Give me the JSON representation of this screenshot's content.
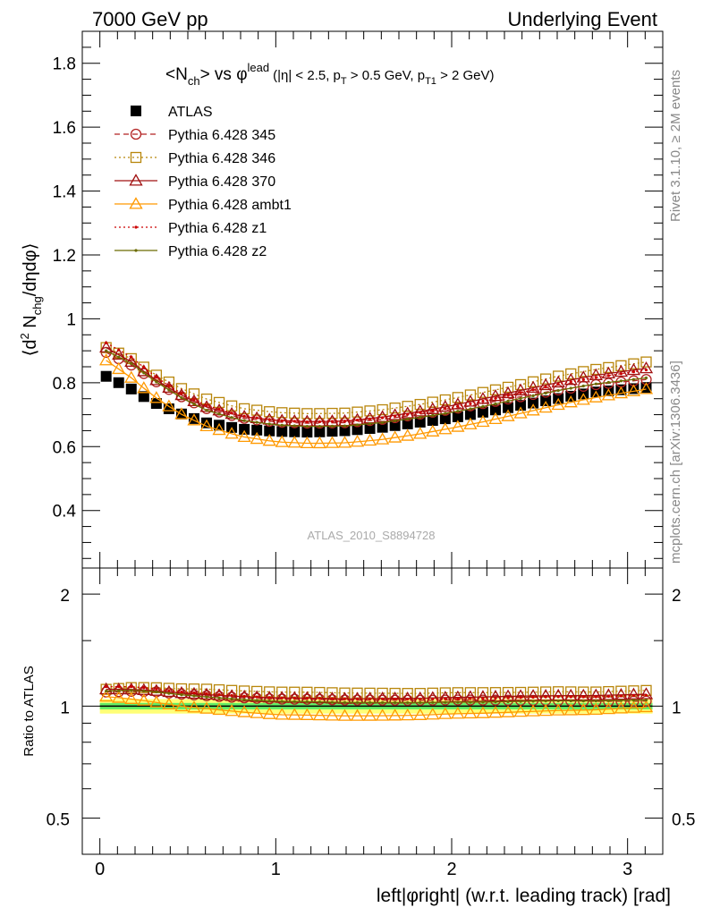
{
  "header": {
    "left": "7000 GeV pp",
    "right": "Underlying Event",
    "side_top": "Rivet 3.1.10, ≥ 2M events",
    "side_bottom": "mcplots.cern.ch [arXiv:1306.3436]"
  },
  "chart_data": {
    "type": "scatter",
    "title": {
      "main": "<N",
      "main_sub": "ch",
      "main_mid": "> vs φ",
      "main_sup": "lead",
      "cuts_a": "(|η| < 2.5, p",
      "cuts_a_sub": "T",
      "cuts_b": " > 0.5 GeV, p",
      "cuts_b_sub": "T1",
      "cuts_c": " > 2 GeV)"
    },
    "ylabel": {
      "a": "⟨d",
      "a_sup": "2",
      "b": " N",
      "b_sub": "chg",
      "c": "/dηdφ⟩"
    },
    "xlabel": "left|φright| (w.r.t. leading track) [rad]",
    "ratio_ylabel": "Ratio to ATLAS",
    "watermark": "ATLAS_2010_S8894728",
    "xlim": [
      -0.1,
      3.2
    ],
    "ylim": [
      0.22,
      1.9
    ],
    "ratio_ylim": [
      0.4,
      2.35
    ],
    "x_ticks": [
      "0",
      "1",
      "2",
      "3"
    ],
    "y_ticks": [
      "0.4",
      "0.6",
      "0.8",
      "1",
      "1.2",
      "1.4",
      "1.6",
      "1.8"
    ],
    "ratio_y_ticks": [
      "0.5",
      "1",
      "2"
    ],
    "n_points": 44,
    "x_start": 0.0357,
    "x_step": 0.0714,
    "series": [
      {
        "name": "ATLAS",
        "color": "#000000",
        "marker": "filled-square",
        "line": "none",
        "anchors": [
          [
            0.0357,
            0.82
          ],
          [
            0.18,
            0.78
          ],
          [
            0.3,
            0.74
          ],
          [
            0.45,
            0.705
          ],
          [
            0.6,
            0.675
          ],
          [
            0.8,
            0.655
          ],
          [
            1.0,
            0.648
          ],
          [
            1.2,
            0.645
          ],
          [
            1.4,
            0.65
          ],
          [
            1.6,
            0.66
          ],
          [
            1.8,
            0.675
          ],
          [
            2.0,
            0.69
          ],
          [
            2.2,
            0.71
          ],
          [
            2.4,
            0.73
          ],
          [
            2.6,
            0.75
          ],
          [
            2.8,
            0.77
          ],
          [
            3.1058,
            0.785
          ]
        ]
      },
      {
        "name": "Pythia 6.428 345",
        "color": "#b22222",
        "marker": "open-circle",
        "line": "dashed",
        "anchors": [
          [
            0.0357,
            0.895
          ],
          [
            0.18,
            0.855
          ],
          [
            0.3,
            0.81
          ],
          [
            0.45,
            0.76
          ],
          [
            0.6,
            0.72
          ],
          [
            0.8,
            0.69
          ],
          [
            1.0,
            0.677
          ],
          [
            1.2,
            0.673
          ],
          [
            1.4,
            0.675
          ],
          [
            1.6,
            0.685
          ],
          [
            1.8,
            0.7
          ],
          [
            2.0,
            0.717
          ],
          [
            2.2,
            0.737
          ],
          [
            2.4,
            0.757
          ],
          [
            2.6,
            0.777
          ],
          [
            2.8,
            0.793
          ],
          [
            3.1058,
            0.81
          ]
        ]
      },
      {
        "name": "Pythia 6.428 346",
        "color": "#b8860b",
        "marker": "open-square",
        "line": "dotted",
        "anchors": [
          [
            0.0357,
            0.91
          ],
          [
            0.18,
            0.875
          ],
          [
            0.3,
            0.83
          ],
          [
            0.45,
            0.785
          ],
          [
            0.6,
            0.75
          ],
          [
            0.8,
            0.72
          ],
          [
            1.0,
            0.707
          ],
          [
            1.2,
            0.703
          ],
          [
            1.4,
            0.705
          ],
          [
            1.6,
            0.715
          ],
          [
            1.8,
            0.73
          ],
          [
            2.0,
            0.75
          ],
          [
            2.2,
            0.772
          ],
          [
            2.4,
            0.795
          ],
          [
            2.6,
            0.82
          ],
          [
            2.8,
            0.84
          ],
          [
            3.1058,
            0.865
          ]
        ]
      },
      {
        "name": "Pythia 6.428 370",
        "color": "#a01010",
        "marker": "open-triangle",
        "line": "solid",
        "anchors": [
          [
            0.0357,
            0.91
          ],
          [
            0.18,
            0.865
          ],
          [
            0.3,
            0.815
          ],
          [
            0.45,
            0.765
          ],
          [
            0.6,
            0.725
          ],
          [
            0.8,
            0.695
          ],
          [
            1.0,
            0.682
          ],
          [
            1.2,
            0.678
          ],
          [
            1.4,
            0.68
          ],
          [
            1.6,
            0.692
          ],
          [
            1.8,
            0.708
          ],
          [
            2.0,
            0.728
          ],
          [
            2.2,
            0.752
          ],
          [
            2.4,
            0.777
          ],
          [
            2.6,
            0.8
          ],
          [
            2.8,
            0.822
          ],
          [
            3.1058,
            0.845
          ]
        ]
      },
      {
        "name": "Pythia 6.428 ambt1",
        "color": "#ff9900",
        "marker": "open-triangle",
        "line": "solid",
        "anchors": [
          [
            0.0357,
            0.87
          ],
          [
            0.18,
            0.815
          ],
          [
            0.3,
            0.76
          ],
          [
            0.45,
            0.705
          ],
          [
            0.6,
            0.665
          ],
          [
            0.8,
            0.632
          ],
          [
            1.0,
            0.615
          ],
          [
            1.2,
            0.61
          ],
          [
            1.4,
            0.612
          ],
          [
            1.6,
            0.622
          ],
          [
            1.8,
            0.638
          ],
          [
            2.0,
            0.658
          ],
          [
            2.2,
            0.68
          ],
          [
            2.4,
            0.705
          ],
          [
            2.6,
            0.73
          ],
          [
            2.8,
            0.752
          ],
          [
            3.1058,
            0.78
          ]
        ]
      },
      {
        "name": "Pythia 6.428 z1",
        "color": "#cc0000",
        "marker": "dot",
        "line": "dotted",
        "anchors": [
          [
            0.0357,
            0.925
          ],
          [
            0.18,
            0.88
          ],
          [
            0.3,
            0.825
          ],
          [
            0.45,
            0.77
          ],
          [
            0.6,
            0.73
          ],
          [
            0.8,
            0.697
          ],
          [
            1.0,
            0.682
          ],
          [
            1.2,
            0.677
          ],
          [
            1.4,
            0.68
          ],
          [
            1.6,
            0.69
          ],
          [
            1.8,
            0.705
          ],
          [
            2.0,
            0.722
          ],
          [
            2.2,
            0.745
          ],
          [
            2.4,
            0.77
          ],
          [
            2.6,
            0.795
          ],
          [
            2.8,
            0.815
          ],
          [
            3.1058,
            0.84
          ]
        ]
      },
      {
        "name": "Pythia 6.428 z2",
        "color": "#6b6b00",
        "marker": "dot",
        "line": "solid",
        "anchors": [
          [
            0.0357,
            0.9
          ],
          [
            0.18,
            0.86
          ],
          [
            0.3,
            0.81
          ],
          [
            0.45,
            0.757
          ],
          [
            0.6,
            0.715
          ],
          [
            0.8,
            0.683
          ],
          [
            1.0,
            0.668
          ],
          [
            1.2,
            0.663
          ],
          [
            1.4,
            0.665
          ],
          [
            1.6,
            0.675
          ],
          [
            1.8,
            0.69
          ],
          [
            2.0,
            0.707
          ],
          [
            2.2,
            0.728
          ],
          [
            2.4,
            0.752
          ],
          [
            2.6,
            0.775
          ],
          [
            2.8,
            0.795
          ],
          [
            3.1058,
            0.815
          ]
        ]
      }
    ],
    "uncertainty_bands": {
      "inner": {
        "color": "#66ee66",
        "rel": 0.02
      },
      "outer": {
        "color": "#ffff77",
        "rel": 0.045
      }
    }
  }
}
